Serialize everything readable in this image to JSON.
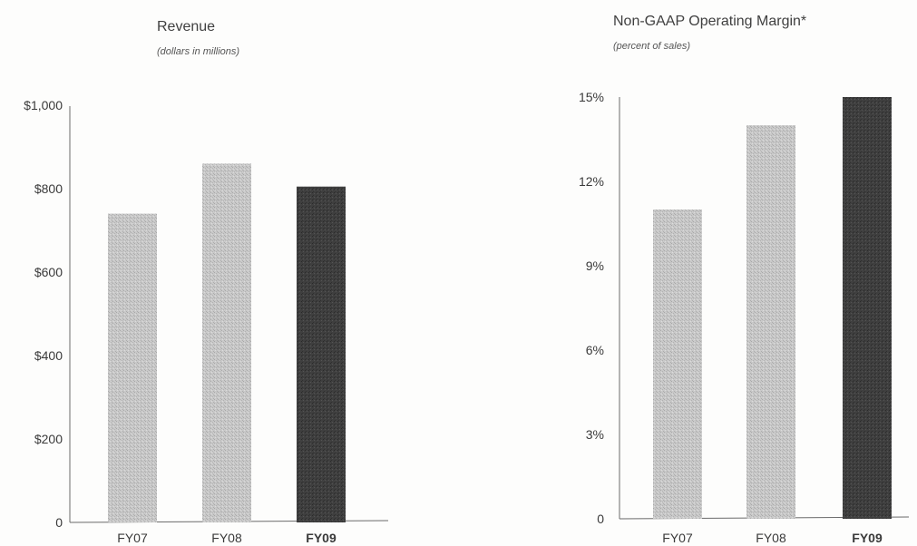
{
  "chart_data": [
    {
      "type": "bar",
      "title": "Revenue",
      "subtitle": "(dollars in millions)",
      "categories": [
        "FY07",
        "FY08",
        "FY09"
      ],
      "values": [
        740,
        860,
        805
      ],
      "ylim": [
        0,
        1000
      ],
      "yticks": [
        0,
        200,
        400,
        600,
        800,
        1000
      ],
      "ytick_labels": [
        "0",
        "$200",
        "$400",
        "$600",
        "$800",
        "$1,000"
      ],
      "bold_categories": [
        "FY09"
      ],
      "bar_colors": [
        "#c4c4c4",
        "#c4c4c4",
        "#3c3c3c"
      ],
      "grid": false
    },
    {
      "type": "bar",
      "title": "Non-GAAP Operating Margin*",
      "subtitle": "(percent of sales)",
      "categories": [
        "FY07",
        "FY08",
        "FY09"
      ],
      "values": [
        11,
        14,
        15
      ],
      "ylim": [
        0,
        15
      ],
      "yticks": [
        0,
        3,
        6,
        9,
        12,
        15
      ],
      "ytick_labels": [
        "0",
        "3%",
        "6%",
        "9%",
        "12%",
        "15%"
      ],
      "bold_categories": [
        "FY09"
      ],
      "bar_colors": [
        "#c4c4c4",
        "#c4c4c4",
        "#3c3c3c"
      ],
      "grid": false
    }
  ]
}
